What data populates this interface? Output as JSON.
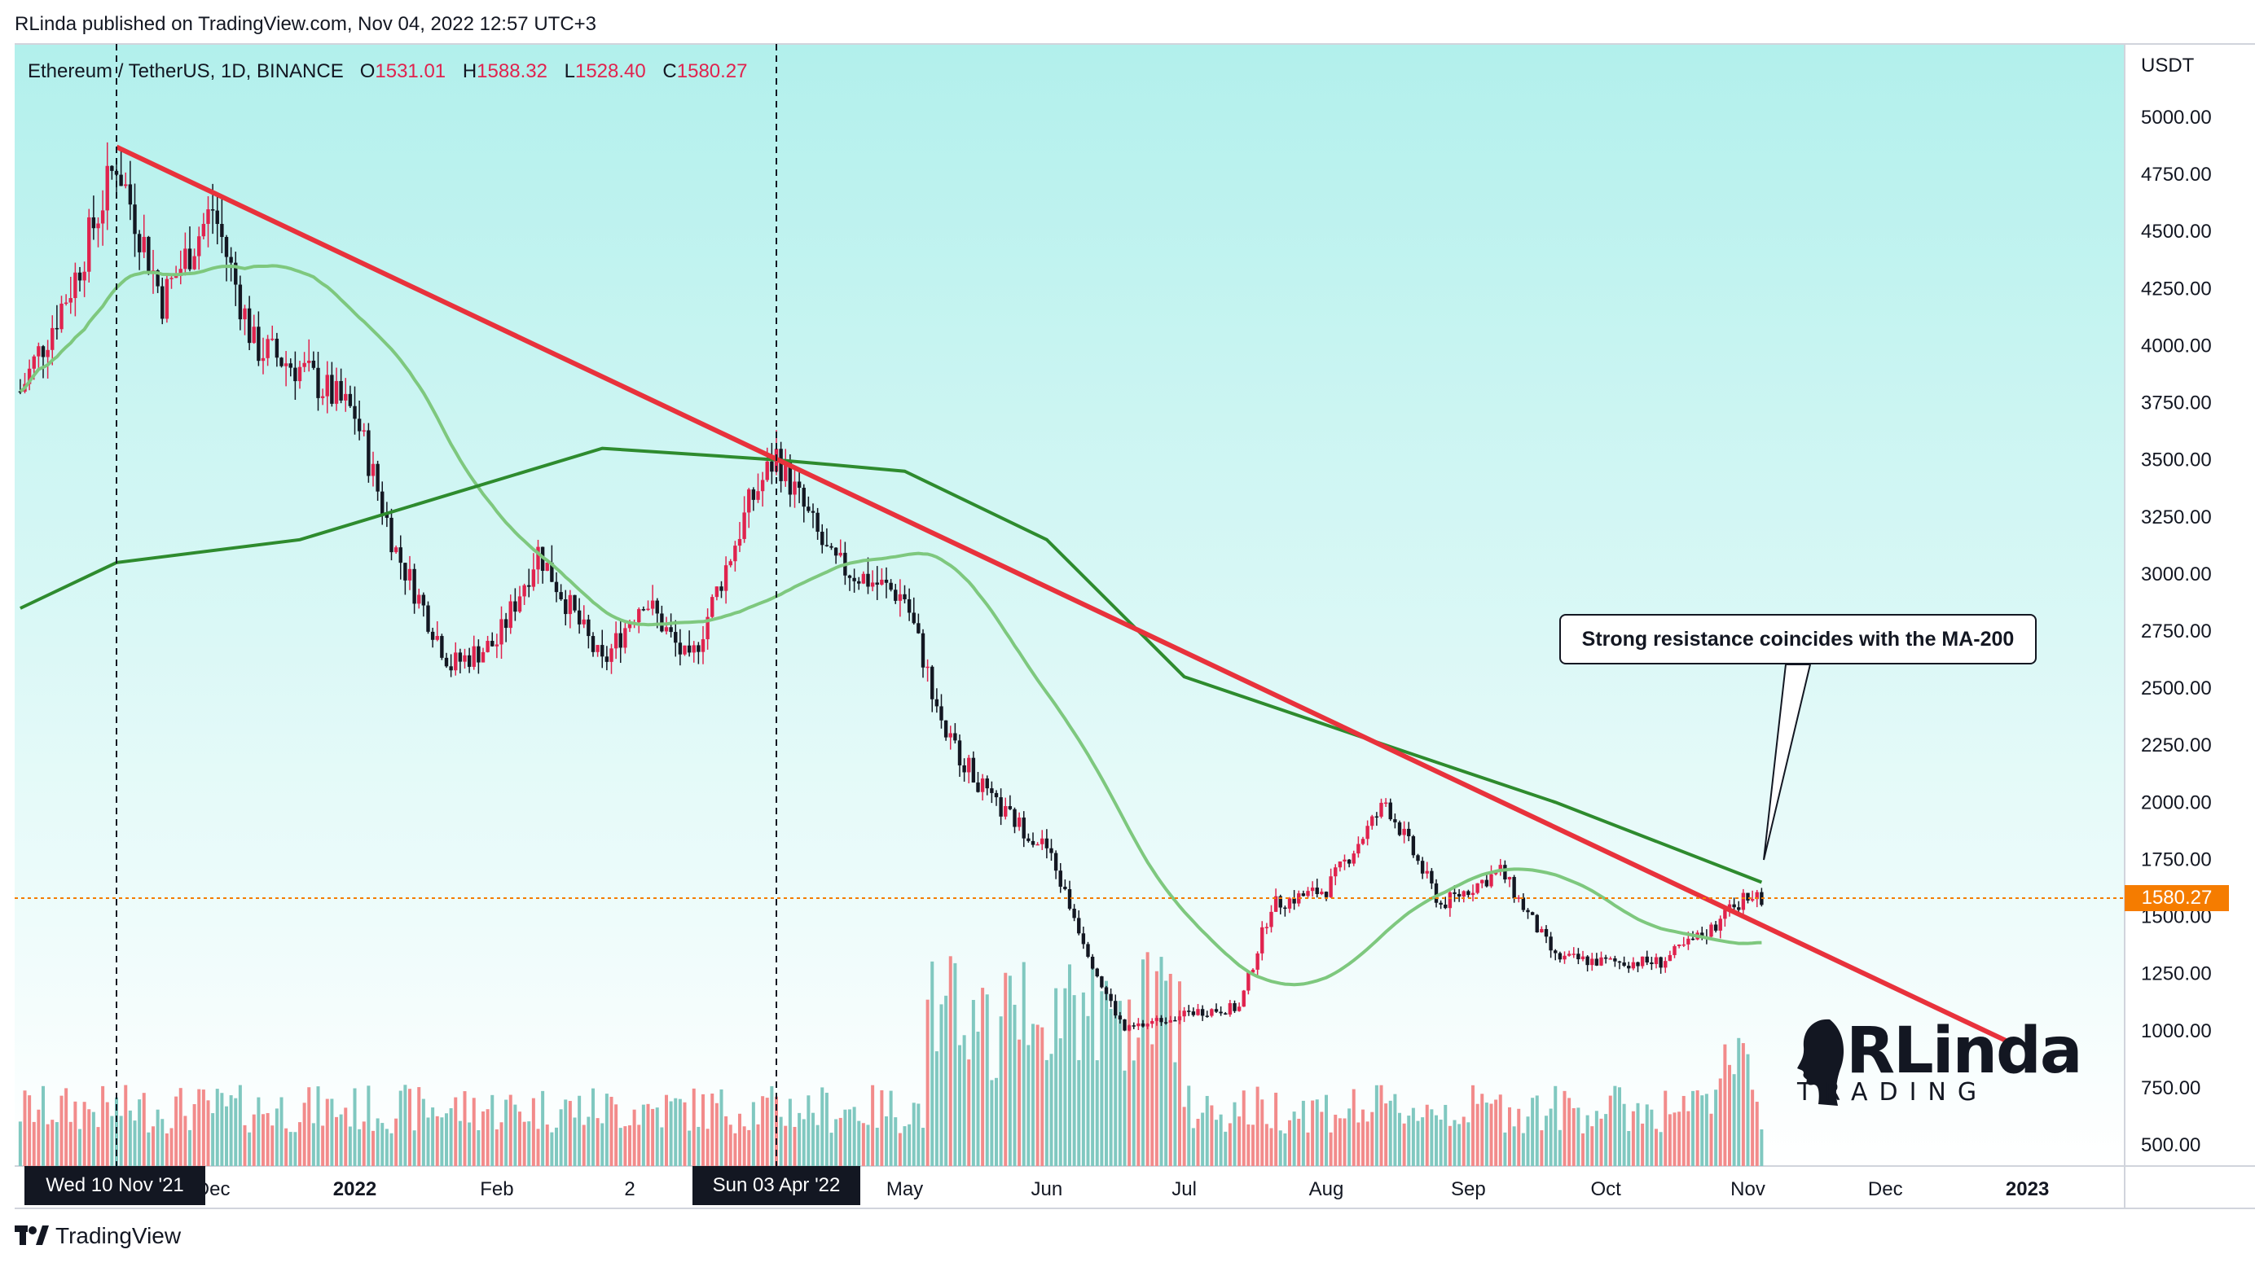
{
  "header": {
    "published": "RLinda published on TradingView.com, Nov 04, 2022 12:57 UTC+3"
  },
  "legend": {
    "symbol": "Ethereum / TetherUS, 1D, BINANCE",
    "open_label": "O",
    "open": "1531.01",
    "high_label": "H",
    "high": "1588.32",
    "low_label": "L",
    "low": "1528.40",
    "close_label": "C",
    "close": "1580.27"
  },
  "price_axis": {
    "unit": "USDT",
    "ticks": [
      "5000.00",
      "4750.00",
      "4500.00",
      "4250.00",
      "4000.00",
      "3750.00",
      "3500.00",
      "3250.00",
      "3000.00",
      "2750.00",
      "2500.00",
      "2250.00",
      "2000.00",
      "1750.00",
      "1500.00",
      "1250.00",
      "1000.00",
      "750.00",
      "500.00"
    ],
    "last_price": "1580.27"
  },
  "time_axis": {
    "ticks": [
      "Dec",
      "2022",
      "Feb",
      "2",
      "May",
      "Jun",
      "Jul",
      "Aug",
      "Sep",
      "Oct",
      "Nov",
      "Dec",
      "2023"
    ],
    "crosshair_labels": [
      "Wed 10 Nov '21",
      "Sun 03 Apr '22"
    ]
  },
  "annotation": {
    "callout": "Strong resistance coincides with the MA-200"
  },
  "watermark": {
    "title": "RLinda",
    "subtitle": "TRADING"
  },
  "footer": {
    "brand": "TradingView"
  },
  "colors": {
    "background_top": "#b2f0ec",
    "background_bottom": "#ffffff",
    "candle_up": "#e0234e",
    "candle_down": "#131722",
    "volume_up": "#f28b8b",
    "volume_down": "#80c8c0",
    "trendline": "#e8323c",
    "ma_50": "#7ec87e",
    "ma_200": "#2e8b2e",
    "last_price": "#f57c00"
  },
  "chart_data": {
    "type": "candlestick",
    "symbol": "ETH/USDT",
    "interval": "1D",
    "y_range": [
      420,
      5150
    ],
    "series": [
      {
        "name": "Price",
        "x": [
          "2021-10-20",
          "2021-11-01",
          "2021-11-10",
          "2021-11-20",
          "2021-12-01",
          "2021-12-10",
          "2021-12-20",
          "2022-01-01",
          "2022-01-10",
          "2022-01-22",
          "2022-02-01",
          "2022-02-10",
          "2022-02-24",
          "2022-03-05",
          "2022-03-15",
          "2022-03-28",
          "2022-04-03",
          "2022-04-15",
          "2022-05-01",
          "2022-05-10",
          "2022-05-20",
          "2022-06-01",
          "2022-06-13",
          "2022-06-18",
          "2022-07-01",
          "2022-07-13",
          "2022-07-20",
          "2022-08-01",
          "2022-08-14",
          "2022-08-26",
          "2022-09-08",
          "2022-09-20",
          "2022-10-01",
          "2022-10-13",
          "2022-10-25",
          "2022-11-01",
          "2022-11-04"
        ],
        "close": [
          3800,
          4300,
          4810,
          4200,
          4600,
          4000,
          3900,
          3700,
          3100,
          2600,
          2700,
          3100,
          2600,
          2900,
          2600,
          3300,
          3520,
          3050,
          2900,
          2300,
          2000,
          1800,
          1200,
          1000,
          1080,
          1100,
          1550,
          1620,
          2000,
          1550,
          1700,
          1320,
          1300,
          1300,
          1460,
          1600,
          1580
        ]
      },
      {
        "name": "MA-200",
        "x": [
          "2021-10-20",
          "2021-11-10",
          "2021-12-20",
          "2022-01-22",
          "2022-02-24",
          "2022-04-03",
          "2022-05-01",
          "2022-06-01",
          "2022-07-01",
          "2022-08-14",
          "2022-09-20",
          "2022-11-04"
        ],
        "values": [
          2850,
          3050,
          3150,
          3350,
          3550,
          3500,
          3450,
          3150,
          2550,
          2250,
          2000,
          1650
        ]
      }
    ],
    "trendline": {
      "from": {
        "x": "2021-11-10",
        "y": 4870
      },
      "to": {
        "x": "2022-12-28",
        "y": 950
      }
    },
    "last_price_line": 1580.27,
    "volume": "bars at bottom, peaks around Jun 2022"
  }
}
